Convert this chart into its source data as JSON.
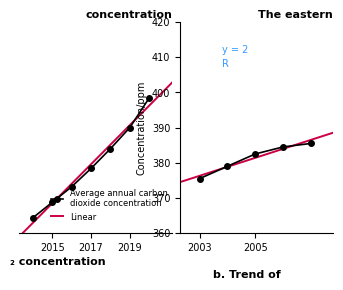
{
  "left_title": "concentration",
  "left_ylabel": "",
  "left_xlim": [
    2013.3,
    2021.2
  ],
  "left_ylim": [
    395,
    425
  ],
  "left_yticks": [],
  "left_xticks": [
    2015,
    2017,
    2019
  ],
  "left_years": [
    2014,
    2015,
    2016,
    2017,
    2018,
    2019,
    2020
  ],
  "left_values": [
    397.2,
    399.4,
    401.6,
    404.2,
    407.0,
    410.0,
    414.2
  ],
  "left_legend_line": "Average annual carbon\ndioxide concentration",
  "left_legend_linear": "Linear",
  "left_subtitle": "   concentration\n2",
  "right_title": "The eastern",
  "right_ylabel": "Concentration/ppm",
  "right_xlim": [
    2002.3,
    2007.8
  ],
  "right_ylim": [
    360,
    420
  ],
  "right_yticks": [
    360,
    370,
    380,
    390,
    400,
    410,
    420
  ],
  "right_xticks": [
    2003,
    2005
  ],
  "right_years": [
    2003,
    2004,
    2005,
    2006,
    2007
  ],
  "right_values": [
    375.5,
    379.0,
    382.5,
    384.5,
    385.5
  ],
  "right_subtitle": "b. Trend of",
  "eq_text_line1": "y = 2",
  "eq_text_line2": "R",
  "eq_color": "#3399ff",
  "line_color": "#000000",
  "linear_color": "#cc0044",
  "background_color": "#ffffff"
}
